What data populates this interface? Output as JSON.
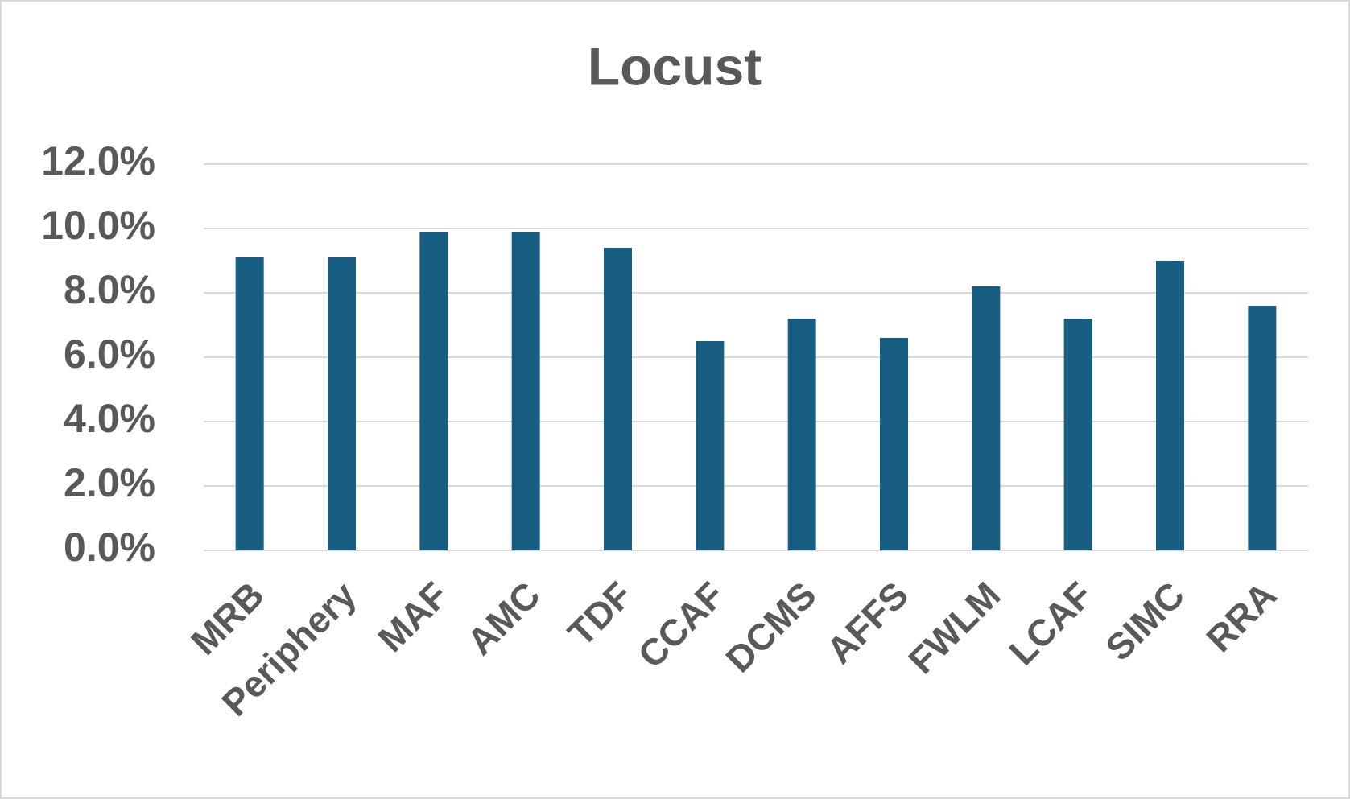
{
  "chart_data": {
    "type": "bar",
    "title": "Locust",
    "categories": [
      "MRB",
      "Periphery",
      "MAF",
      "AMC",
      "TDF",
      "CCAF",
      "DCMS",
      "AFFS",
      "FWLM",
      "LCAF",
      "SIMC",
      "RRA"
    ],
    "values": [
      9.1,
      9.1,
      9.9,
      9.9,
      9.4,
      6.5,
      7.2,
      6.6,
      8.2,
      7.2,
      9.0,
      7.6
    ],
    "color": "#175e82",
    "ylim": [
      0,
      12
    ],
    "yticks": [
      {
        "value": 0,
        "label": "0.0%"
      },
      {
        "value": 2,
        "label": "2.0%"
      },
      {
        "value": 4,
        "label": "4.0%"
      },
      {
        "value": 6,
        "label": "6.0%"
      },
      {
        "value": 8,
        "label": "8.0%"
      },
      {
        "value": 10,
        "label": "10.0%"
      },
      {
        "value": 12,
        "label": "12.0%"
      }
    ],
    "grid": true
  }
}
